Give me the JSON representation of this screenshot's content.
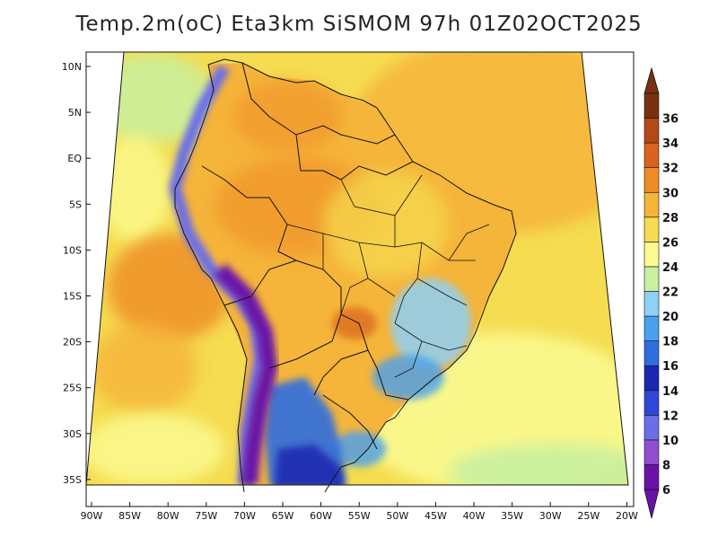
{
  "title": "Temp.2m(oC) Eta3km SiSMOM 97h 01Z02OCT2025",
  "map": {
    "lat_labels": [
      "10N",
      "5N",
      "EQ",
      "5S",
      "10S",
      "15S",
      "20S",
      "25S",
      "30S",
      "35S"
    ],
    "lon_labels": [
      "90W",
      "85W",
      "80W",
      "75W",
      "70W",
      "65W",
      "60W",
      "55W",
      "50W",
      "45W",
      "40W",
      "35W",
      "30W",
      "25W",
      "20W"
    ],
    "extent": {
      "lon_min": -90.5,
      "lon_max": -20,
      "lat_min": -37,
      "lat_max": 12
    },
    "regions": [
      {
        "name": "ocean-base",
        "value_c": 24
      },
      {
        "name": "pacific-warm-pool",
        "value_c": 28
      },
      {
        "name": "atlantic-warm",
        "value_c": 26
      },
      {
        "name": "south-atlantic-cool",
        "value_c": 22
      },
      {
        "name": "amazon-basin",
        "value_c": 28
      },
      {
        "name": "andes-cold",
        "value_c": 8
      },
      {
        "name": "patagonia-cold",
        "value_c": 12
      },
      {
        "name": "south-brazil-highlands",
        "value_c": 18
      }
    ]
  },
  "colorbar": {
    "labels": [
      "6",
      "8",
      "10",
      "12",
      "14",
      "16",
      "18",
      "20",
      "22",
      "24",
      "26",
      "28",
      "30",
      "32",
      "34",
      "36"
    ],
    "colors": [
      "#6a12a8",
      "#8f4fd0",
      "#6c6ee8",
      "#3047d8",
      "#1a28b0",
      "#2f6ee0",
      "#4aa0f0",
      "#8fd0f5",
      "#c8f0a0",
      "#fafa90",
      "#f5dc50",
      "#f5b43a",
      "#ef8c28",
      "#d8641e",
      "#b44818",
      "#7a3010"
    ]
  }
}
